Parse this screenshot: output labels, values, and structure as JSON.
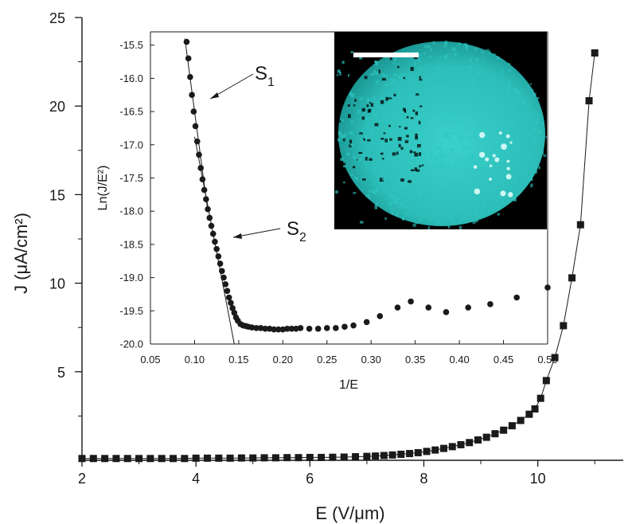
{
  "chart_data": [
    {
      "type": "scatter",
      "role": "main",
      "xlabel": "E (V/μm)",
      "ylabel": "J (μA/cm²)",
      "xlim": [
        2,
        11.5
      ],
      "ylim": [
        0,
        25
      ],
      "x_ticks": [
        2,
        4,
        6,
        8,
        10
      ],
      "y_ticks": [
        5,
        10,
        15,
        20,
        25
      ],
      "marker": "square",
      "connected": true,
      "grid": false,
      "x": [
        2.0,
        2.2,
        2.4,
        2.6,
        2.8,
        3.0,
        3.2,
        3.4,
        3.6,
        3.8,
        4.0,
        4.2,
        4.4,
        4.6,
        4.8,
        5.0,
        5.2,
        5.4,
        5.6,
        5.8,
        6.0,
        6.2,
        6.4,
        6.6,
        6.8,
        7.0,
        7.15,
        7.3,
        7.45,
        7.6,
        7.75,
        7.9,
        8.05,
        8.2,
        8.35,
        8.5,
        8.65,
        8.8,
        8.95,
        9.1,
        9.25,
        9.4,
        9.55,
        9.7,
        9.85,
        9.95,
        10.05,
        10.15,
        10.3,
        10.45,
        10.6,
        10.75,
        10.9,
        11.0
      ],
      "y": [
        0.1,
        0.1,
        0.1,
        0.1,
        0.1,
        0.1,
        0.1,
        0.1,
        0.1,
        0.1,
        0.12,
        0.12,
        0.12,
        0.12,
        0.13,
        0.13,
        0.14,
        0.14,
        0.15,
        0.15,
        0.16,
        0.16,
        0.17,
        0.18,
        0.2,
        0.22,
        0.24,
        0.27,
        0.3,
        0.34,
        0.38,
        0.43,
        0.5,
        0.58,
        0.67,
        0.77,
        0.88,
        1.0,
        1.15,
        1.3,
        1.5,
        1.7,
        1.95,
        2.25,
        2.6,
        2.9,
        3.5,
        4.5,
        5.8,
        7.6,
        10.3,
        13.3,
        20.3,
        23.0
      ]
    },
    {
      "type": "scatter",
      "role": "inset",
      "xlabel": "1/E",
      "ylabel": "Ln(J/E²)",
      "xlim": [
        0.05,
        0.5
      ],
      "ylim": [
        -20.0,
        -15.3
      ],
      "x_ticks": [
        "0.05",
        "0.10",
        "0.15",
        "0.20",
        "0.25",
        "0.30",
        "0.35",
        "0.40",
        "0.45",
        "0.50"
      ],
      "y_ticks": [
        "-15.5",
        "-16.0",
        "-16.5",
        "-17.0",
        "-17.5",
        "-18.0",
        "-18.5",
        "-19.0",
        "-19.5",
        "-20.0"
      ],
      "marker": "circle",
      "x": [
        0.091,
        0.093,
        0.095,
        0.097,
        0.099,
        0.101,
        0.103,
        0.105,
        0.107,
        0.109,
        0.111,
        0.113,
        0.115,
        0.117,
        0.119,
        0.121,
        0.123,
        0.125,
        0.127,
        0.129,
        0.131,
        0.133,
        0.135,
        0.137,
        0.139,
        0.141,
        0.143,
        0.145,
        0.147,
        0.149,
        0.152,
        0.155,
        0.158,
        0.161,
        0.165,
        0.17,
        0.175,
        0.18,
        0.185,
        0.19,
        0.195,
        0.2,
        0.205,
        0.21,
        0.215,
        0.22,
        0.23,
        0.24,
        0.25,
        0.26,
        0.27,
        0.28,
        0.295,
        0.31,
        0.33,
        0.345,
        0.365,
        0.385,
        0.41,
        0.435,
        0.465,
        0.5
      ],
      "y": [
        -15.45,
        -15.7,
        -15.98,
        -16.25,
        -16.5,
        -16.72,
        -16.95,
        -17.15,
        -17.35,
        -17.52,
        -17.68,
        -17.82,
        -17.97,
        -18.1,
        -18.22,
        -18.34,
        -18.46,
        -18.57,
        -18.68,
        -18.79,
        -18.9,
        -19.0,
        -19.1,
        -19.2,
        -19.3,
        -19.38,
        -19.46,
        -19.53,
        -19.6,
        -19.65,
        -19.7,
        -19.72,
        -19.73,
        -19.74,
        -19.75,
        -19.76,
        -19.76,
        -19.77,
        -19.77,
        -19.78,
        -19.78,
        -19.78,
        -19.77,
        -19.77,
        -19.77,
        -19.76,
        -19.77,
        -19.77,
        -19.76,
        -19.76,
        -19.74,
        -19.72,
        -19.67,
        -19.58,
        -19.45,
        -19.36,
        -19.45,
        -19.52,
        -19.45,
        -19.4,
        -19.3,
        -19.15
      ],
      "fit_lines": [
        {
          "name": "S1",
          "x": [
            0.089,
            0.115
          ],
          "y": [
            -15.4,
            -18.0
          ]
        },
        {
          "name": "S2",
          "x": [
            0.1,
            0.145
          ],
          "y": [
            -16.88,
            -20.0
          ]
        }
      ],
      "annotations": [
        {
          "label": "S",
          "sub": "1"
        },
        {
          "label": "S",
          "sub": "2"
        }
      ]
    }
  ],
  "inset_image": {
    "description_icon": "emission-image-icon",
    "background_color": "#000000",
    "spot_color": "#2fc7c2",
    "highlight_color": "#e8fffd",
    "scale_bar_color": "#ffffff"
  }
}
